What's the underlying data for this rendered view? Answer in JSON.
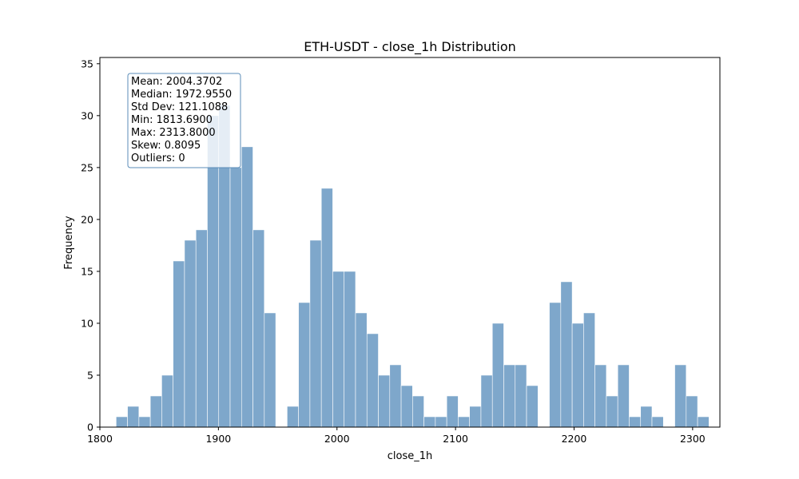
{
  "chart_data": {
    "type": "bar",
    "title": "ETH-USDT - close_1h Distribution",
    "xlabel": "close_1h",
    "ylabel": "Frequency",
    "xlim": [
      1800,
      2323
    ],
    "ylim": [
      0,
      35.6
    ],
    "grid": false,
    "bins": {
      "start": 1813.69,
      "end": 2313.8,
      "counts": [
        1,
        2,
        1,
        3,
        5,
        16,
        18,
        19,
        30,
        31,
        25,
        27,
        19,
        11,
        0,
        2,
        12,
        18,
        23,
        15,
        15,
        11,
        9,
        5,
        6,
        4,
        3,
        1,
        1,
        3,
        1,
        2,
        5,
        10,
        6,
        6,
        4,
        0,
        12,
        14,
        10,
        11,
        6,
        3,
        6,
        1,
        2,
        1,
        0,
        6,
        3,
        1
      ]
    },
    "bar_color": "#7ea7cb",
    "x_ticks": [
      "1800",
      "1900",
      "2000",
      "2100",
      "2200",
      "2300"
    ],
    "x_tick_values": [
      1800,
      1900,
      2000,
      2100,
      2200,
      2300
    ],
    "y_ticks": [
      "0",
      "5",
      "10",
      "15",
      "20",
      "25",
      "30",
      "35"
    ],
    "y_tick_values": [
      0,
      5,
      10,
      15,
      20,
      25,
      30,
      35
    ]
  },
  "stats_box": {
    "lines": [
      "Mean: 2004.3702",
      "Median: 1972.9550",
      "Std Dev: 121.1088",
      "Min: 1813.6900",
      "Max: 2313.8000",
      "Skew: 0.8095",
      "Outliers: 0"
    ],
    "border_color": "#5b8db8"
  }
}
